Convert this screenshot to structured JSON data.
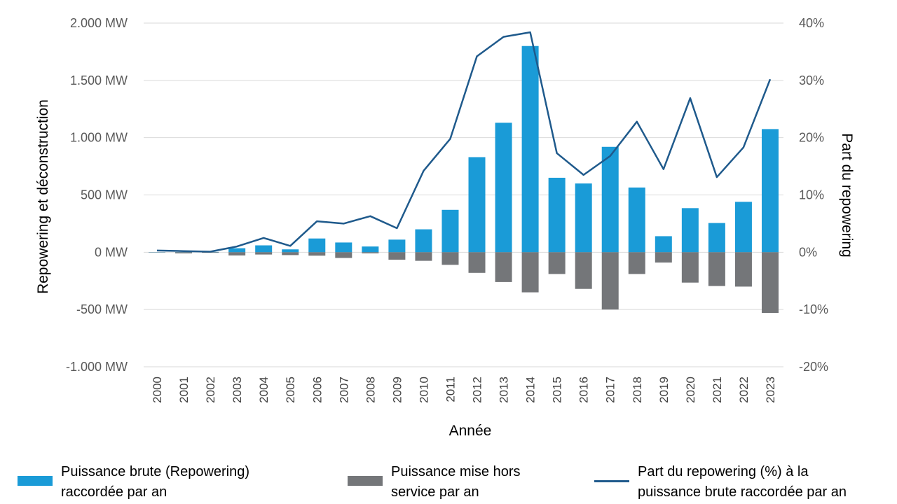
{
  "chart_data": {
    "type": "bar",
    "title": "",
    "xlabel": "Année",
    "ylabel": "Repowering et déconstruction",
    "ylabel_right": "Part du repowering",
    "ylim": [
      -1000,
      2000
    ],
    "ylim_right": [
      -20,
      40
    ],
    "y_ticks": [
      "2.000 MW",
      "1.500 MW",
      "1.000 MW",
      "500 MW",
      "0 MW",
      "-500 MW",
      "-1.000 MW"
    ],
    "y_ticks_right": [
      "40%",
      "30%",
      "20%",
      "10%",
      "0%",
      "-10%",
      "-20%"
    ],
    "categories": [
      "2000",
      "2001",
      "2002",
      "2003",
      "2004",
      "2005",
      "2006",
      "2007",
      "2008",
      "2009",
      "2010",
      "2011",
      "2012",
      "2013",
      "2014",
      "2015",
      "2016",
      "2017",
      "2018",
      "2019",
      "2020",
      "2021",
      "2022",
      "2023"
    ],
    "series": [
      {
        "name": "Puissance brute (Repowering) raccordée par an",
        "type": "bar",
        "color": "#1a9bd7",
        "values": [
          2,
          2,
          3,
          35,
          60,
          25,
          120,
          85,
          50,
          110,
          200,
          370,
          830,
          1130,
          1800,
          650,
          600,
          920,
          565,
          140,
          385,
          255,
          440,
          1075
        ]
      },
      {
        "name": "Puissance mise hors service par an",
        "type": "bar",
        "color": "#747679",
        "values": [
          -2,
          -10,
          -5,
          -28,
          -20,
          -25,
          -30,
          -50,
          -10,
          -65,
          -75,
          -110,
          -180,
          -260,
          -350,
          -190,
          -320,
          -500,
          -190,
          -90,
          -265,
          -295,
          -300,
          -530
        ]
      },
      {
        "name": "Part du repowering (%) à la puissance brute raccordée par an",
        "type": "line",
        "axis": "right",
        "color": "#1f5a8c",
        "values": [
          0.3,
          0.2,
          0.1,
          1.0,
          2.5,
          1.1,
          5.4,
          5.0,
          6.3,
          4.2,
          14.2,
          19.8,
          34.2,
          37.6,
          38.4,
          17.3,
          13.5,
          16.8,
          22.8,
          14.5,
          26.9,
          13.1,
          18.3,
          30.2
        ]
      }
    ],
    "legend": [
      {
        "label": [
          "Puissance brute (Repowering)",
          "raccordée par an"
        ],
        "color": "#1a9bd7",
        "kind": "bar"
      },
      {
        "label": [
          "Puissance mise hors",
          "service par an"
        ],
        "color": "#747679",
        "kind": "bar"
      },
      {
        "label": [
          "Part du repowering (%) à la",
          "puissance brute raccordée par an"
        ],
        "color": "#1f5a8c",
        "kind": "line"
      }
    ],
    "legend_position": "bottom",
    "grid": true
  }
}
